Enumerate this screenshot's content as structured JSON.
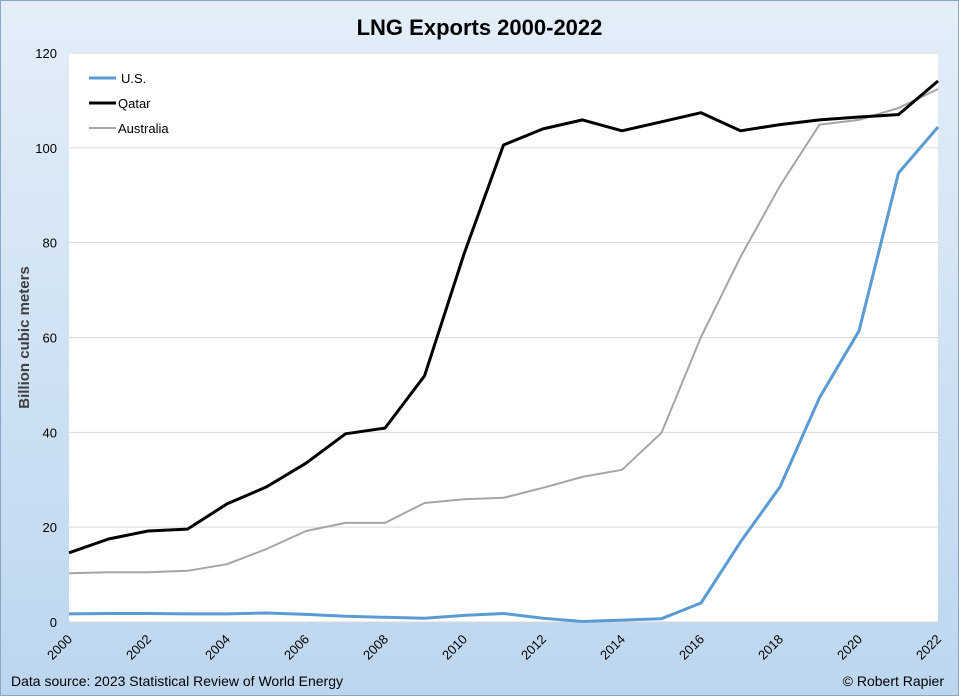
{
  "chart_data": {
    "type": "line",
    "title": "LNG Exports 2000-2022",
    "xlabel": "",
    "ylabel": "Billion cubic meters",
    "xlim": [
      2000,
      2022
    ],
    "ylim": [
      0,
      120
    ],
    "yticks": [
      0,
      20,
      40,
      60,
      80,
      100,
      120
    ],
    "xticks": [
      2000,
      2002,
      2004,
      2006,
      2008,
      2010,
      2012,
      2014,
      2016,
      2018,
      2020,
      2022
    ],
    "grid": "horizontal",
    "legend": "top-left",
    "x": [
      2000,
      2001,
      2002,
      2003,
      2004,
      2005,
      2006,
      2007,
      2008,
      2009,
      2010,
      2011,
      2012,
      2013,
      2014,
      2015,
      2016,
      2017,
      2018,
      2019,
      2020,
      2021,
      2022
    ],
    "series": [
      {
        "name": "U.S.",
        "color": "#5b9bd5",
        "values": [
          1.7,
          1.8,
          1.8,
          1.7,
          1.7,
          1.9,
          1.6,
          1.2,
          1.0,
          0.8,
          1.4,
          1.8,
          0.8,
          0.1,
          0.4,
          0.7,
          4.0,
          16.9,
          28.5,
          47.3,
          61.4,
          94.7,
          104.4
        ]
      },
      {
        "name": "Qatar",
        "color": "#000000",
        "values": [
          14.6,
          17.5,
          19.2,
          19.6,
          24.9,
          28.5,
          33.5,
          39.7,
          40.9,
          51.9,
          77.6,
          100.6,
          104.0,
          105.9,
          103.6,
          105.5,
          107.4,
          103.6,
          104.9,
          105.9,
          106.5,
          107.0,
          114.1
        ]
      },
      {
        "name": "Australia",
        "color": "#a5a5a5",
        "values": [
          10.3,
          10.5,
          10.5,
          10.8,
          12.2,
          15.4,
          19.2,
          20.9,
          20.9,
          25.1,
          25.9,
          26.2,
          28.3,
          30.6,
          32.1,
          39.9,
          60.1,
          77.0,
          92.0,
          104.9,
          105.9,
          108.4,
          112.4
        ]
      }
    ]
  },
  "footer": {
    "source": "Data source: 2023 Statistical Review of World Energy",
    "copyright": "© Robert Rapier"
  }
}
